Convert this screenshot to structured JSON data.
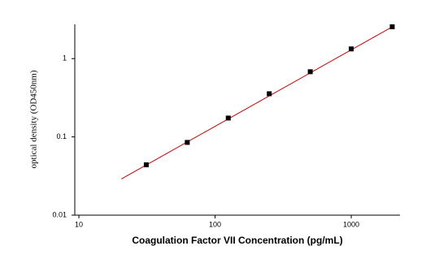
{
  "chart_data": {
    "type": "scatter",
    "x_label": "Coagulation Factor VII Concentration (pg/mL)",
    "y_label": "optical density (OD450nm)",
    "x": [
      31.25,
      62.5,
      125,
      250,
      500,
      1000,
      2000
    ],
    "series": [
      {
        "color": "#000000",
        "values": [
          0.044,
          0.085,
          0.174,
          0.356,
          0.68,
          1.33,
          2.55
        ]
      }
    ],
    "fit_line": {
      "color": "#cc0000",
      "x": [
        20.5,
        2000
      ],
      "y": [
        0.029,
        2.55
      ]
    },
    "xlim": [
      9.33,
      2280
    ],
    "ylim": [
      0.01,
      2.74
    ],
    "xticks": [
      10,
      100,
      1000
    ],
    "yticks": [
      0.01,
      0.1,
      1
    ],
    "xscale": "log",
    "yscale": "log",
    "grid": false
  }
}
